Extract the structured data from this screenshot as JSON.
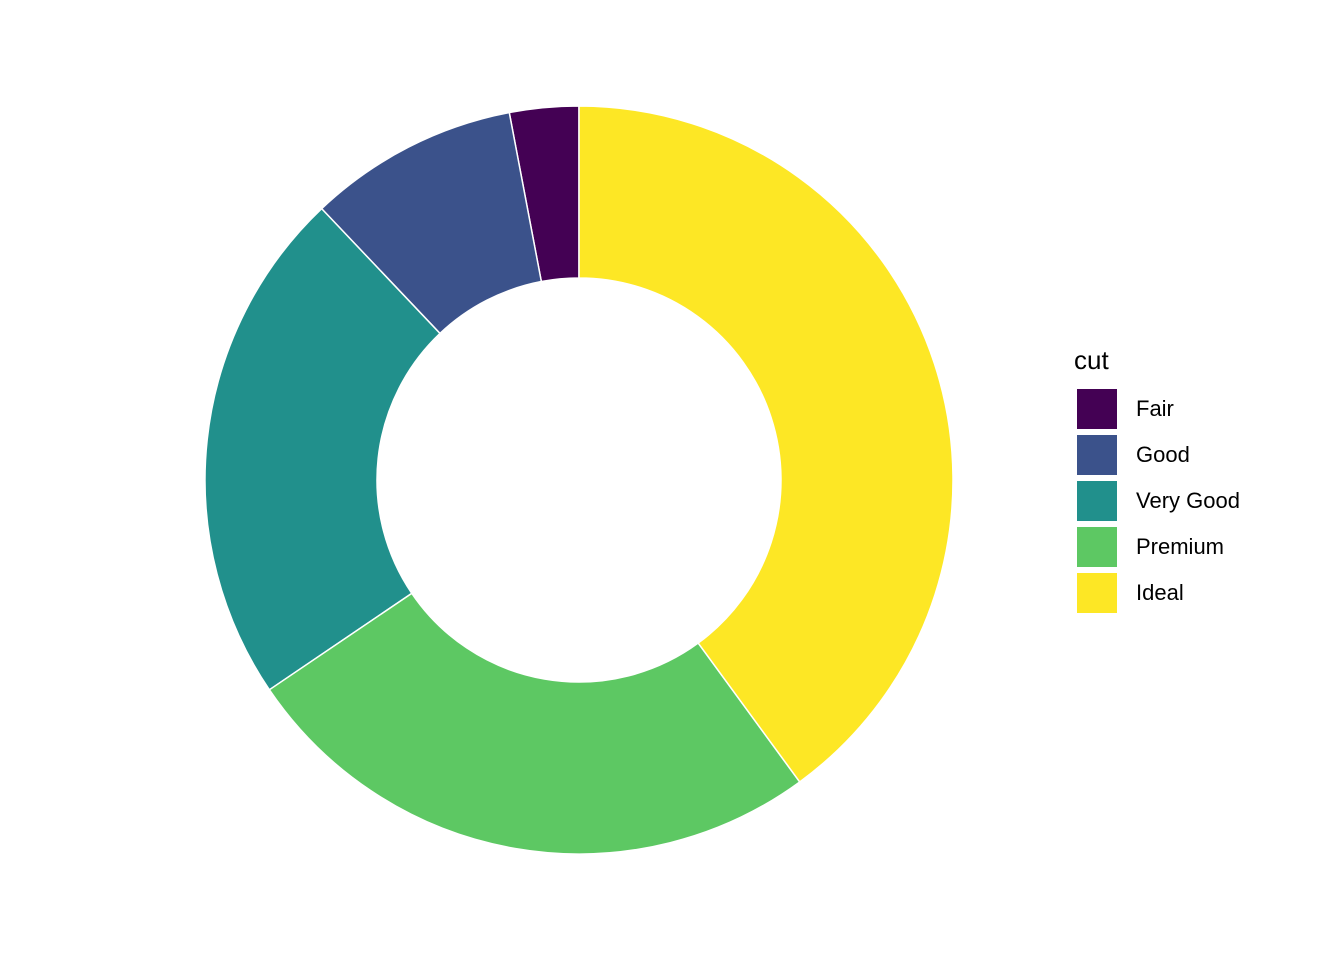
{
  "chart_data": {
    "type": "pie",
    "variant": "donut",
    "legend_title": "cut",
    "legend_position": "right",
    "categories": [
      "Fair",
      "Good",
      "Very Good",
      "Premium",
      "Ideal"
    ],
    "values": [
      1610,
      4906,
      12082,
      13791,
      21551
    ],
    "colors": [
      "#440154",
      "#3B528B",
      "#21908C",
      "#5DC863",
      "#FDE725"
    ],
    "start_angle": "12 o'clock",
    "stack_order": "counterclockwise from top: Fair, Good, Very Good, Premium, Ideal",
    "slice_border_color": "#FFFFFF"
  }
}
